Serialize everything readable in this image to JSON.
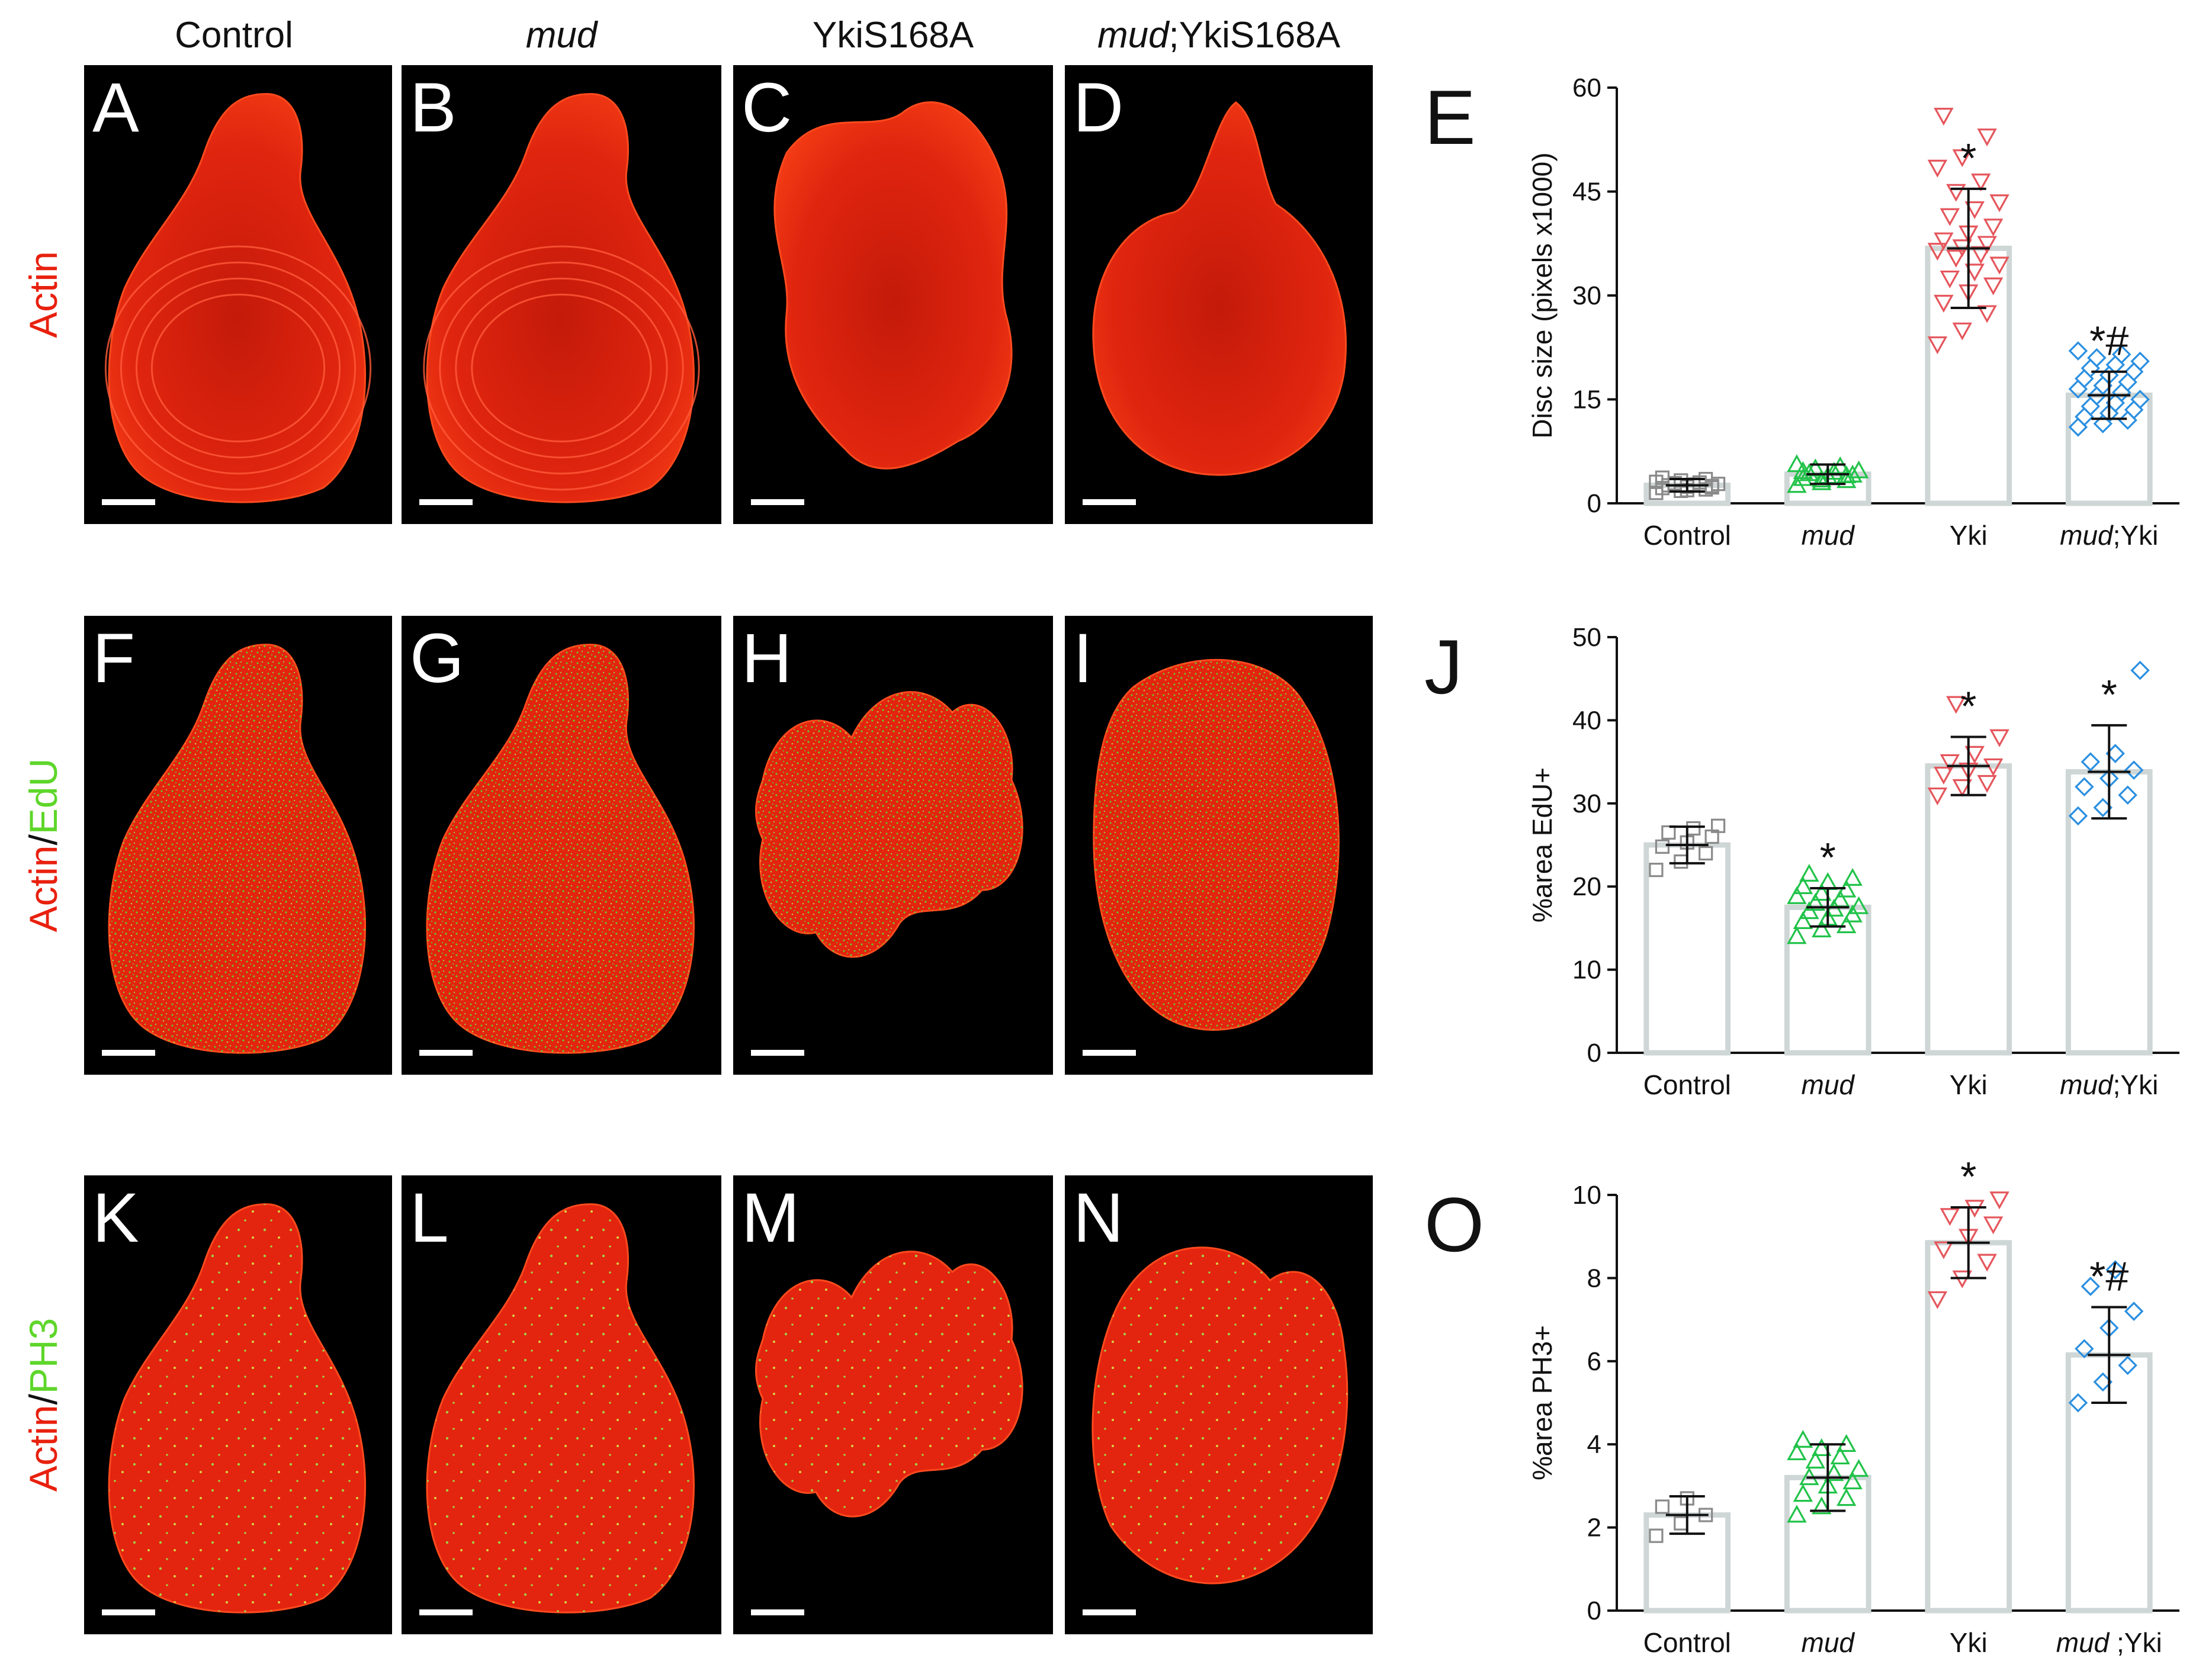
{
  "column_headers": [
    {
      "text": "Control",
      "italic": false
    },
    {
      "text": "mud",
      "italic": true
    },
    {
      "text": "YkiS168A",
      "italic": false
    },
    {
      "text": "mud;YkiS168A",
      "italic": false,
      "italic_prefix": "mud",
      "rest": ";YkiS168A"
    }
  ],
  "rows": [
    {
      "stain_label": {
        "first": "Actin",
        "sep": "",
        "second": ""
      },
      "panels": [
        "A",
        "B",
        "C",
        "D"
      ],
      "chart_letter": "E"
    },
    {
      "stain_label": {
        "first": "Actin",
        "sep": "/",
        "second": "EdU"
      },
      "panels": [
        "F",
        "G",
        "H",
        "I"
      ],
      "chart_letter": "J"
    },
    {
      "stain_label": {
        "first": "Actin",
        "sep": "/",
        "second": "PH3"
      },
      "panels": [
        "K",
        "L",
        "M",
        "N"
      ],
      "chart_letter": "O"
    }
  ],
  "colors": {
    "actin_red": "#e8200e",
    "edu_green": "#5ed62a",
    "control": "#8a8a8a",
    "mud": "#22c34a",
    "yki": "#e5565c",
    "mud_yki": "#2a8fe0",
    "bar_outline": "#cfd6d6",
    "text": "#111111"
  },
  "chart_data": [
    {
      "type": "bar",
      "letter": "E",
      "categories": [
        "Control",
        "mud",
        "Yki",
        "mud;Yki"
      ],
      "category_italic_prefix": [
        "",
        "mud",
        "",
        "mud"
      ],
      "ylabel": "Disc size (pixels x1000)",
      "ylim": [
        0,
        60
      ],
      "yticks": [
        0,
        15,
        30,
        45,
        60
      ],
      "series": [
        {
          "values": [
            2.6,
            4.2,
            36.8,
            15.6
          ],
          "sd": [
            0.9,
            1.4,
            8.6,
            3.4
          ],
          "markers": [
            "square",
            "triangle-up",
            "triangle-down",
            "diamond"
          ],
          "points": [
            [
              1.5,
              1.8,
              2.0,
              2.2,
              2.4,
              2.5,
              2.6,
              2.7,
              2.8,
              2.9,
              3.0,
              3.1,
              3.3,
              3.5,
              3.7,
              1.9,
              2.3,
              2.6
            ],
            [
              2.6,
              3.0,
              3.3,
              3.6,
              3.9,
              4.1,
              4.3,
              4.5,
              4.7,
              5.0,
              5.3,
              5.6,
              3.4,
              4.0,
              4.6
            ],
            [
              23.0,
              25.0,
              27.5,
              29.0,
              30.5,
              31.5,
              32.5,
              33.5,
              34.5,
              35.5,
              36.0,
              36.5,
              37.0,
              37.5,
              38.0,
              39.0,
              40.0,
              41.5,
              42.5,
              43.5,
              45.0,
              46.5,
              48.5,
              50.0,
              53.0,
              56.0
            ],
            [
              11.0,
              11.5,
              12.0,
              12.5,
              13.0,
              13.5,
              14.0,
              14.5,
              15.0,
              15.5,
              16.0,
              16.5,
              17.0,
              17.5,
              18.0,
              18.5,
              19.0,
              19.5,
              20.0,
              20.5,
              21.0,
              21.5,
              22.0
            ]
          ]
        }
      ],
      "annotations": [
        "",
        "",
        "*",
        "*#"
      ]
    },
    {
      "type": "bar",
      "letter": "J",
      "categories": [
        "Control",
        "mud",
        "Yki",
        "mud;Yki"
      ],
      "category_italic_prefix": [
        "",
        "mud",
        "",
        "mud"
      ],
      "ylabel": "%area  EdU+",
      "ylim": [
        0,
        50
      ],
      "yticks": [
        0,
        10,
        20,
        30,
        40,
        50
      ],
      "series": [
        {
          "values": [
            25.0,
            17.5,
            34.5,
            33.8
          ],
          "sd": [
            2.2,
            2.3,
            3.5,
            5.6
          ],
          "markers": [
            "square",
            "triangle-up",
            "triangle-down",
            "diamond"
          ],
          "points": [
            [
              22.0,
              23.0,
              24.0,
              24.8,
              25.3,
              26.0,
              26.5,
              27.0,
              27.3
            ],
            [
              14.0,
              14.8,
              15.3,
              15.8,
              16.2,
              16.6,
              17.0,
              17.3,
              17.6,
              18.0,
              18.4,
              18.8,
              19.2,
              19.6,
              20.0,
              20.5,
              21.0,
              21.5
            ],
            [
              31.0,
              32.0,
              32.5,
              33.5,
              34.0,
              34.5,
              35.0,
              36.0,
              38.0,
              42.0
            ],
            [
              28.5,
              29.5,
              31.0,
              32.0,
              33.0,
              34.0,
              35.0,
              36.0,
              46.0
            ]
          ]
        }
      ],
      "annotations": [
        "",
        "*",
        "*",
        "*"
      ]
    },
    {
      "type": "bar",
      "letter": "O",
      "categories": [
        "Control",
        "mud",
        "Yki",
        "mud ;Yki"
      ],
      "category_italic_prefix": [
        "",
        "mud",
        "",
        "mud"
      ],
      "ylabel": "%area  PH3+",
      "ylim": [
        0,
        10
      ],
      "yticks": [
        0,
        2,
        4,
        6,
        8,
        10
      ],
      "series": [
        {
          "values": [
            2.3,
            3.2,
            8.85,
            6.15
          ],
          "sd": [
            0.45,
            0.8,
            0.85,
            1.15
          ],
          "markers": [
            "square",
            "triangle-up",
            "triangle-down",
            "diamond"
          ],
          "points": [
            [
              1.8,
              2.1,
              2.3,
              2.5,
              2.7
            ],
            [
              2.3,
              2.5,
              2.7,
              2.8,
              3.0,
              3.1,
              3.2,
              3.3,
              3.4,
              3.6,
              3.7,
              3.8,
              3.9,
              4.0,
              4.1
            ],
            [
              7.5,
              8.0,
              8.4,
              8.7,
              9.0,
              9.3,
              9.5,
              9.7,
              9.9
            ],
            [
              5.0,
              5.5,
              5.9,
              6.3,
              6.8,
              7.2,
              7.8,
              8.2
            ]
          ]
        }
      ],
      "annotations": [
        "",
        "",
        "*",
        "*#"
      ]
    }
  ]
}
